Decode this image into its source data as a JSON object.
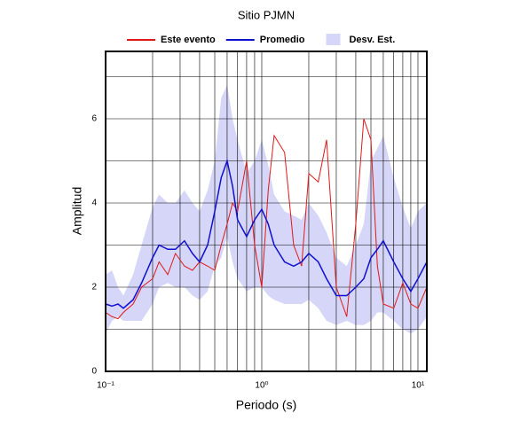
{
  "chart_data": {
    "type": "line",
    "title": "Sitio PJMN",
    "xlabel": "Periodo (s)",
    "ylabel": "Amplitud",
    "xscale": "log",
    "grid": true,
    "xlim": [
      0.1,
      11.4
    ],
    "ylim": [
      0,
      7.6
    ],
    "xticks": [
      {
        "value": 0.1,
        "label": "10⁻¹"
      },
      {
        "value": 1,
        "label": "10⁰"
      },
      {
        "value": 10,
        "label": "10¹"
      }
    ],
    "xminor": [
      0.2,
      0.3,
      0.4,
      0.5,
      0.6,
      0.7,
      0.8,
      0.9,
      2,
      3,
      4,
      5,
      6,
      7,
      8,
      9
    ],
    "yticks": [
      0,
      2,
      4,
      6
    ],
    "yminor": [
      1,
      3,
      5,
      7
    ],
    "x": [
      0.1,
      0.11,
      0.12,
      0.13,
      0.15,
      0.17,
      0.2,
      0.22,
      0.25,
      0.28,
      0.32,
      0.36,
      0.4,
      0.45,
      0.5,
      0.55,
      0.6,
      0.65,
      0.7,
      0.8,
      0.9,
      1.0,
      1.1,
      1.2,
      1.4,
      1.6,
      1.8,
      2.0,
      2.3,
      2.6,
      3.0,
      3.5,
      4.0,
      4.5,
      5.0,
      5.5,
      6.0,
      7.0,
      8.0,
      9.0,
      10,
      11.4
    ],
    "series": [
      {
        "name": "Este evento",
        "color": "#e01818",
        "values": [
          1.4,
          1.3,
          1.25,
          1.4,
          1.6,
          2.0,
          2.2,
          2.6,
          2.3,
          2.8,
          2.5,
          2.4,
          2.6,
          2.5,
          2.4,
          3.0,
          3.5,
          4.0,
          3.8,
          5.0,
          3.0,
          2.0,
          4.3,
          5.6,
          5.2,
          3.0,
          2.5,
          4.7,
          4.5,
          5.5,
          2.0,
          1.3,
          3.5,
          6.0,
          5.5,
          2.5,
          1.6,
          1.5,
          2.1,
          1.6,
          1.5,
          2.0
        ]
      },
      {
        "name": "Promedio",
        "color": "#1010d0",
        "values": [
          1.6,
          1.55,
          1.6,
          1.5,
          1.7,
          2.1,
          2.7,
          3.0,
          2.9,
          2.9,
          3.1,
          2.8,
          2.6,
          3.0,
          3.8,
          4.6,
          5.0,
          4.4,
          3.6,
          3.2,
          3.6,
          3.85,
          3.5,
          3.0,
          2.6,
          2.5,
          2.6,
          2.8,
          2.6,
          2.2,
          1.8,
          1.8,
          2.0,
          2.2,
          2.7,
          2.9,
          3.1,
          2.6,
          2.2,
          1.9,
          2.2,
          2.6
        ]
      },
      {
        "name": "Desv. Est.",
        "color": "#d6d6f8",
        "lower": [
          0.9,
          1.2,
          1.3,
          1.2,
          1.2,
          1.2,
          1.6,
          2.0,
          2.1,
          2.0,
          2.0,
          1.8,
          1.7,
          1.9,
          2.5,
          2.7,
          3.2,
          2.6,
          2.2,
          1.9,
          2.0,
          2.0,
          1.8,
          1.7,
          1.6,
          1.6,
          1.6,
          1.7,
          1.5,
          1.2,
          1.1,
          1.2,
          1.1,
          1.1,
          1.2,
          1.4,
          1.4,
          1.2,
          1.0,
          0.9,
          1.0,
          1.3
        ],
        "upper": [
          2.3,
          2.4,
          2.0,
          1.8,
          2.3,
          3.0,
          3.9,
          4.2,
          4.0,
          4.0,
          4.3,
          4.0,
          3.8,
          4.3,
          5.0,
          6.5,
          6.8,
          6.0,
          5.5,
          4.7,
          5.0,
          5.5,
          4.9,
          4.2,
          3.8,
          3.7,
          3.6,
          4.0,
          3.7,
          3.3,
          2.7,
          2.5,
          3.0,
          3.5,
          5.0,
          5.3,
          5.6,
          4.6,
          3.9,
          3.4,
          3.8,
          4.0
        ]
      }
    ]
  }
}
